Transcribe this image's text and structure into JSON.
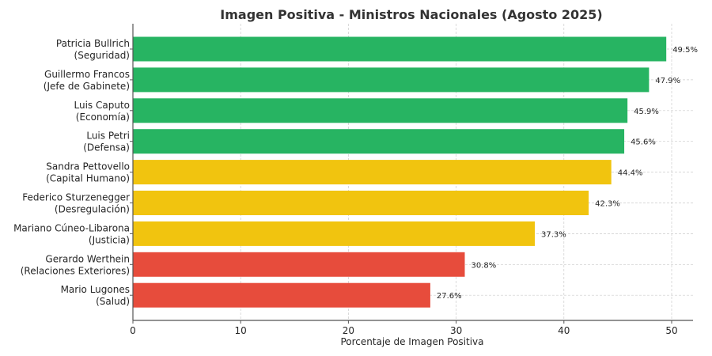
{
  "chart_data": {
    "type": "bar",
    "orientation": "horizontal",
    "title": "Imagen Positiva - Ministros Nacionales (Agosto 2025)",
    "xlabel": "Porcentaje de Imagen Positiva",
    "ylabel": "",
    "xlim": [
      0,
      52
    ],
    "xticks": [
      0,
      10,
      20,
      30,
      40,
      50
    ],
    "grid": true,
    "categories": [
      [
        "Patricia Bullrich",
        "(Seguridad)"
      ],
      [
        "Guillermo Francos",
        "(Jefe de Gabinete)"
      ],
      [
        "Luis Caputo",
        "(Economía)"
      ],
      [
        "Luis Petri",
        "(Defensa)"
      ],
      [
        "Sandra Pettovello",
        "(Capital Humano)"
      ],
      [
        "Federico Sturzenegger",
        "(Desregulación)"
      ],
      [
        "Mariano Cúneo-Libarona",
        "(Justicia)"
      ],
      [
        "Gerardo Werthein",
        "(Relaciones Exteriores)"
      ],
      [
        "Mario Lugones",
        "(Salud)"
      ]
    ],
    "values": [
      49.5,
      47.9,
      45.9,
      45.6,
      44.4,
      42.3,
      37.3,
      30.8,
      27.6
    ],
    "data_labels": [
      "49.5%",
      "47.9%",
      "45.9%",
      "45.6%",
      "44.4%",
      "42.3%",
      "37.3%",
      "30.8%",
      "27.6%"
    ],
    "bar_colors": [
      "#27b462",
      "#27b462",
      "#27b462",
      "#27b462",
      "#f1c40f",
      "#f1c40f",
      "#f1c40f",
      "#e74c3c",
      "#e74c3c"
    ]
  }
}
